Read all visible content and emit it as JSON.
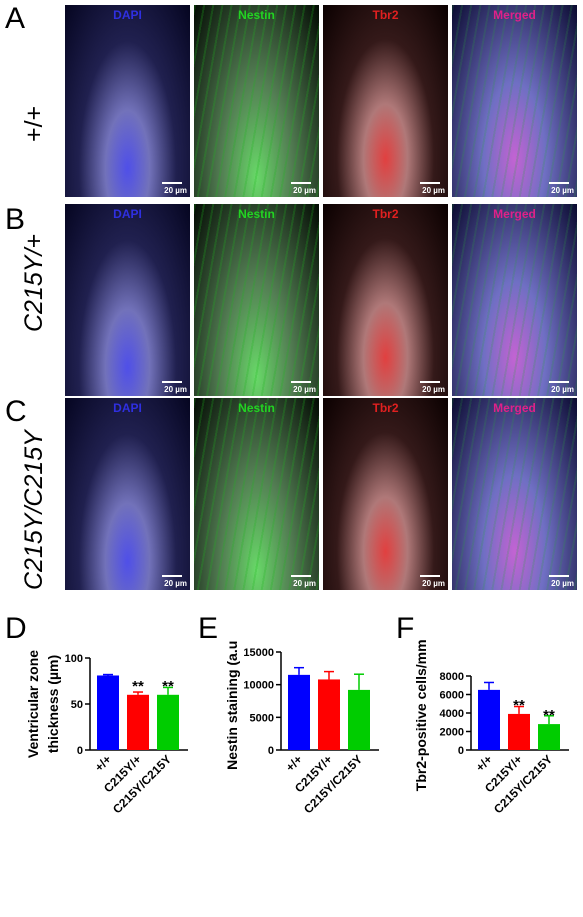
{
  "figure": {
    "panels": [
      {
        "letter": "A",
        "genotype": "+/+"
      },
      {
        "letter": "B",
        "genotype": "C215Y/+"
      },
      {
        "letter": "C",
        "genotype": "C215Y/C215Y"
      }
    ],
    "channels": [
      "DAPI",
      "Nestin",
      "Tbr2",
      "Merged"
    ],
    "channel_colors": {
      "DAPI": "#2f2fe0",
      "Nestin": "#22d322",
      "Tbr2": "#e02020",
      "Merged": "#e0208a"
    },
    "scale_bar_label": "20 µm",
    "charts": {
      "D": {
        "letter": "D"
      },
      "E": {
        "letter": "E"
      },
      "F": {
        "letter": "F"
      }
    }
  },
  "chart_data": [
    {
      "type": "bar",
      "categories": [
        "+/+",
        "C215Y/+",
        "C215Y/C215Y"
      ],
      "values": [
        81,
        60,
        60
      ],
      "errors": [
        1,
        3,
        8
      ],
      "significance": [
        "",
        "**",
        "**"
      ],
      "colors": [
        "#0000ff",
        "#ff0000",
        "#00cc00"
      ],
      "ylabel_lines": [
        "Ventricular zone",
        "thickness (µm)"
      ],
      "yticks": [
        "0",
        "50",
        "100"
      ],
      "ylim": [
        0,
        100
      ]
    },
    {
      "type": "bar",
      "categories": [
        "+/+",
        "C215Y/+",
        "C215Y/C215Y"
      ],
      "values": [
        11500,
        10800,
        9200
      ],
      "errors": [
        1100,
        1200,
        2400
      ],
      "significance": [
        "",
        "",
        ""
      ],
      "colors": [
        "#0000ff",
        "#ff0000",
        "#00cc00"
      ],
      "ylabel_lines": [
        "Nestin staining (a.u.)"
      ],
      "yticks": [
        "0",
        "5000",
        "10000",
        "15000"
      ],
      "ylim": [
        0,
        15000
      ]
    },
    {
      "type": "bar",
      "categories": [
        "+/+",
        "C215Y/+",
        "C215Y/C215Y"
      ],
      "values": [
        6500,
        3900,
        2800
      ],
      "errors": [
        800,
        800,
        900
      ],
      "significance": [
        "",
        "**",
        "**"
      ],
      "colors": [
        "#0000ff",
        "#ff0000",
        "#00cc00"
      ],
      "ylabel_lines": [
        "Tbr2-positive cells/mm²"
      ],
      "yticks": [
        "0",
        "2000",
        "4000",
        "6000",
        "8000"
      ],
      "ylim": [
        0,
        8000
      ]
    }
  ]
}
